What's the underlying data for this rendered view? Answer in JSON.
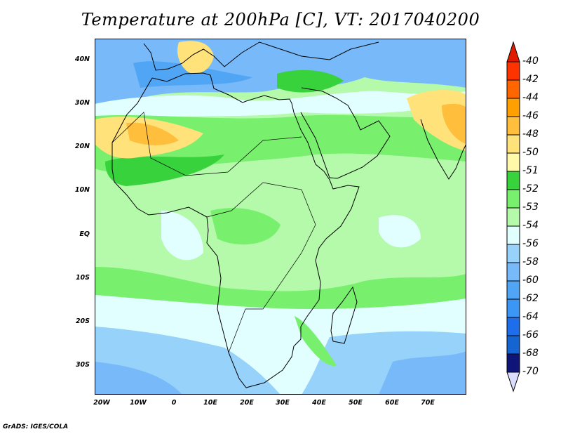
{
  "title": "Temperature at 200hPa [C], VT: 2017040200",
  "credit": "GrADS: IGES/COLA",
  "lat_labels": [
    "40N",
    "30N",
    "20N",
    "10N",
    "EQ",
    "10S",
    "20S",
    "30S"
  ],
  "lon_labels": [
    "20W",
    "10W",
    "0",
    "10E",
    "20E",
    "30E",
    "40E",
    "50E",
    "60E",
    "70E"
  ],
  "colorbar": {
    "labels": [
      "-40",
      "-42",
      "-44",
      "-46",
      "-48",
      "-50",
      "-51",
      "-52",
      "-53",
      "-54",
      "-56",
      "-58",
      "-60",
      "-62",
      "-64",
      "-66",
      "-68",
      "-70"
    ],
    "top_triangle_color": "#e01b00",
    "bottom_triangle_color": "#dcdcff",
    "colors": [
      "#ff3300",
      "#ff6600",
      "#ffa000",
      "#ffbe3c",
      "#ffe27a",
      "#fffaaa",
      "#37d23c",
      "#78f06e",
      "#b4faaa",
      "#e1ffff",
      "#96d2fa",
      "#78b9fa",
      "#50a5f5",
      "#3c96f5",
      "#1e6eeb",
      "#1464d2",
      "#0f1478"
    ]
  }
}
